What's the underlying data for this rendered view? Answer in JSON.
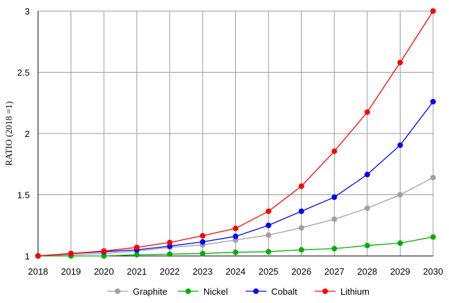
{
  "chart_data": {
    "type": "line",
    "title": "",
    "xlabel": "",
    "ylabel": "RATIO (2018 =1)",
    "x": [
      "2018",
      "2019",
      "2020",
      "2021",
      "2022",
      "2023",
      "2024",
      "2025",
      "2026",
      "2027",
      "2028",
      "2029",
      "2030"
    ],
    "yticks": [
      "1",
      "1.5",
      "2",
      "2.5",
      "3"
    ],
    "ylim": [
      1,
      3
    ],
    "grid": true,
    "legend_position": "bottom",
    "series": [
      {
        "name": "Graphite",
        "color": "#a0a0a0",
        "values": [
          1.0,
          1.01,
          1.02,
          1.04,
          1.07,
          1.09,
          1.13,
          1.17,
          1.23,
          1.3,
          1.39,
          1.5,
          1.64
        ]
      },
      {
        "name": "Nickel",
        "color": "#00b000",
        "values": [
          1.0,
          1.0,
          1.0,
          1.01,
          1.015,
          1.02,
          1.03,
          1.035,
          1.05,
          1.06,
          1.085,
          1.105,
          1.155
        ]
      },
      {
        "name": "Cobalt",
        "color": "#0000ff",
        "values": [
          1.0,
          1.02,
          1.035,
          1.05,
          1.08,
          1.115,
          1.16,
          1.25,
          1.365,
          1.48,
          1.665,
          1.905,
          2.26
        ]
      },
      {
        "name": "Lithium",
        "color": "#ff0000",
        "values": [
          1.0,
          1.02,
          1.04,
          1.07,
          1.11,
          1.165,
          1.225,
          1.365,
          1.57,
          1.855,
          2.175,
          2.58,
          3.0
        ]
      }
    ]
  }
}
